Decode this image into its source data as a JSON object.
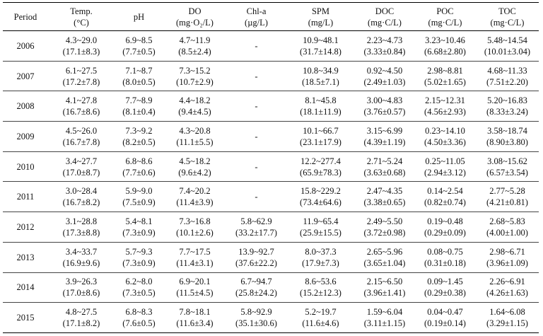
{
  "table": {
    "headers": [
      {
        "line1": "Period",
        "line2": ""
      },
      {
        "line1": "Temp.",
        "line2": "(°C)"
      },
      {
        "line1": "pH",
        "line2": ""
      },
      {
        "line1": "DO",
        "line2": "(mg·O₂/L)"
      },
      {
        "line1": "Chl-a",
        "line2": "(µg/L)"
      },
      {
        "line1": "SPM",
        "line2": "(mg/L)"
      },
      {
        "line1": "DOC",
        "line2": "(mg·C/L)"
      },
      {
        "line1": "POC",
        "line2": "(mg·C/L)"
      },
      {
        "line1": "TOC",
        "line2": "(mg·C/L)"
      }
    ],
    "rows": [
      {
        "period": "2006",
        "cells": [
          [
            "4.3~29.0",
            "(17.1±8.3)"
          ],
          [
            "6.9~8.5",
            "(7.7±0.5)"
          ],
          [
            "4.7~11.9",
            "(8.5±2.4)"
          ],
          [
            "-",
            ""
          ],
          [
            "10.9~48.1",
            "(31.7±14.8)"
          ],
          [
            "2.23~4.73",
            "(3.33±0.84)"
          ],
          [
            "3.23~10.46",
            "(6.68±2.80)"
          ],
          [
            "5.48~14.54",
            "(10.01±3.04)"
          ]
        ]
      },
      {
        "period": "2007",
        "cells": [
          [
            "6.1~27.5",
            "(17.2±7.8)"
          ],
          [
            "7.1~8.7",
            "(8.0±0.5)"
          ],
          [
            "7.3~15.2",
            "(10.7±2.9)"
          ],
          [
            "-",
            ""
          ],
          [
            "10.8~34.9",
            "(18.5±7.1)"
          ],
          [
            "0.92~4.50",
            "(2.49±1.03)"
          ],
          [
            "2.98~8.81",
            "(5.02±1.65)"
          ],
          [
            "4.68~11.33",
            "(7.51±2.20)"
          ]
        ]
      },
      {
        "period": "2008",
        "cells": [
          [
            "4.1~27.8",
            "(16.7±8.6)"
          ],
          [
            "7.7~8.9",
            "(8.1±0.4)"
          ],
          [
            "4.4~18.2",
            "(9.4±4.5)"
          ],
          [
            "-",
            ""
          ],
          [
            "8.1~45.8",
            "(18.1±11.9)"
          ],
          [
            "3.00~4.83",
            "(3.76±0.57)"
          ],
          [
            "2.15~12.31",
            "(4.56±2.93)"
          ],
          [
            "5.20~16.83",
            "(8.33±3.24)"
          ]
        ]
      },
      {
        "period": "2009",
        "cells": [
          [
            "4.5~26.0",
            "(16.7±7.8)"
          ],
          [
            "7.3~9.2",
            "(8.2±0.5)"
          ],
          [
            "4.3~20.8",
            "(11.1±5.5)"
          ],
          [
            "-",
            ""
          ],
          [
            "10.1~66.7",
            "(23.1±17.9)"
          ],
          [
            "3.15~6.99",
            "(4.39±1.19)"
          ],
          [
            "0.23~14.10",
            "(4.50±3.36)"
          ],
          [
            "3.58~18.74",
            "(8.90±3.80)"
          ]
        ]
      },
      {
        "period": "2010",
        "cells": [
          [
            "3.4~27.7",
            "(17.0±8.7)"
          ],
          [
            "6.8~8.6",
            "(7.7±0.6)"
          ],
          [
            "4.5~18.2",
            "(9.6±4.2)"
          ],
          [
            "-",
            ""
          ],
          [
            "12.2~277.4",
            "(65.9±78.3)"
          ],
          [
            "2.71~5.24",
            "(3.63±0.68)"
          ],
          [
            "0.25~11.05",
            "(2.94±3.12)"
          ],
          [
            "3.08~15.62",
            "(6.57±3.54)"
          ]
        ]
      },
      {
        "period": "2011",
        "cells": [
          [
            "3.0~28.4",
            "(16.7±8.2)"
          ],
          [
            "5.9~9.0",
            "(7.5±0.9)"
          ],
          [
            "7.4~20.2",
            "(11.4±3.9)"
          ],
          [
            "-",
            ""
          ],
          [
            "15.8~229.2",
            "(73.4±64.6)"
          ],
          [
            "2.47~4.35",
            "(3.38±0.65)"
          ],
          [
            "0.14~2.54",
            "(0.82±0.74)"
          ],
          [
            "2.77~5.28",
            "(4.21±0.81)"
          ]
        ]
      },
      {
        "period": "2012",
        "cells": [
          [
            "3.1~28.8",
            "(17.3±8.8)"
          ],
          [
            "5.4~8.1",
            "(7.3±0.9)"
          ],
          [
            "7.3~16.8",
            "(10.1±2.6)"
          ],
          [
            "5.8~62.9",
            "(33.2±17.7)"
          ],
          [
            "11.9~65.4",
            "(25.9±15.5)"
          ],
          [
            "2.49~5.50",
            "(3.72±0.98)"
          ],
          [
            "0.19~0.48",
            "(0.29±0.09)"
          ],
          [
            "2.68~5.83",
            "(4.00±1.00)"
          ]
        ]
      },
      {
        "period": "2013",
        "cells": [
          [
            "3.4~33.7",
            "(16.9±9.6)"
          ],
          [
            "5.7~9.3",
            "(7.3±0.9)"
          ],
          [
            "7.7~17.5",
            "(11.4±3.1)"
          ],
          [
            "13.9~92.7",
            "(37.6±22.2)"
          ],
          [
            "8.0~37.3",
            "(17.9±7.3)"
          ],
          [
            "2.65~5.96",
            "(3.65±1.04)"
          ],
          [
            "0.08~0.75",
            "(0.31±0.18)"
          ],
          [
            "2.98~6.71",
            "(3.96±1.09)"
          ]
        ]
      },
      {
        "period": "2014",
        "cells": [
          [
            "3.9~26.3",
            "(17.0±8.6)"
          ],
          [
            "6.2~8.0",
            "(7.3±0.5)"
          ],
          [
            "6.9~20.1",
            "(11.5±4.5)"
          ],
          [
            "6.7~94.7",
            "(25.8±24.2)"
          ],
          [
            "8.6~53.6",
            "(15.2±12.3)"
          ],
          [
            "2.15~6.50",
            "(3.96±1.41)"
          ],
          [
            "0.09~1.45",
            "(0.29±0.38)"
          ],
          [
            "2.26~6.91",
            "(4.26±1.63)"
          ]
        ]
      },
      {
        "period": "2015",
        "cells": [
          [
            "4.8~27.5",
            "(17.1±8.2)"
          ],
          [
            "6.8~8.3",
            "(7.6±0.5)"
          ],
          [
            "7.8~18.1",
            "(11.6±3.4)"
          ],
          [
            "5.8~92.9",
            "(35.1±30.6)"
          ],
          [
            "5.2~19.7",
            "(11.6±4.6)"
          ],
          [
            "1.59~6.04",
            "(3.11±1.15)"
          ],
          [
            "0.04~0.47",
            "(0.19±0.14)"
          ],
          [
            "1.64~6.08",
            "(3.29±1.15)"
          ]
        ]
      }
    ]
  }
}
